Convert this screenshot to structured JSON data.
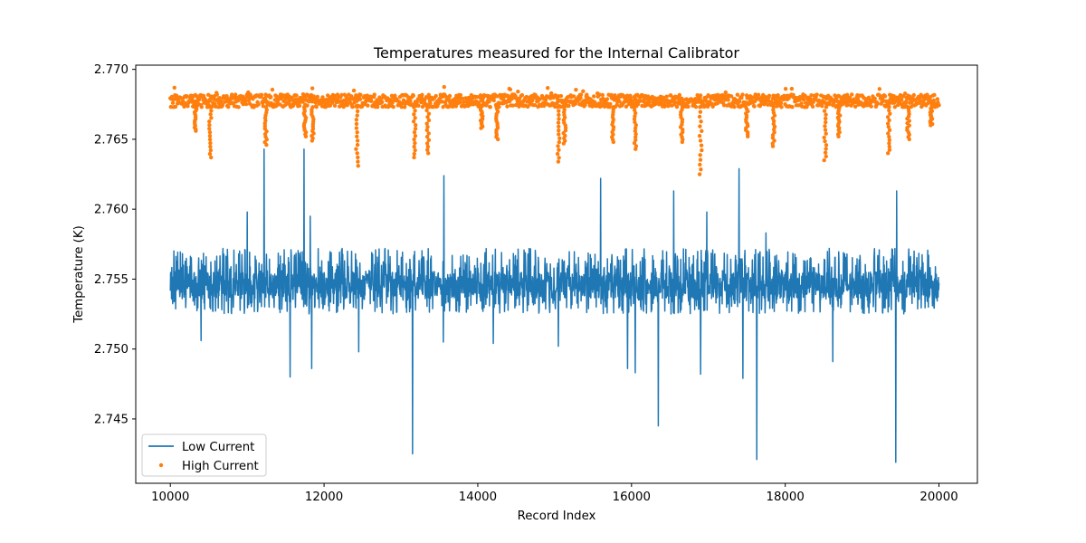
{
  "chart_data": {
    "type": "line",
    "title": "Temperatures measured for the Internal Calibrator",
    "xlabel": "Record Index",
    "ylabel": "Temperature (K)",
    "xlim": [
      9550,
      20500
    ],
    "ylim": [
      2.7404,
      2.7703
    ],
    "x_ticks": [
      10000,
      12000,
      14000,
      16000,
      18000,
      20000
    ],
    "x_tick_labels": [
      "10000",
      "12000",
      "14000",
      "16000",
      "18000",
      "20000"
    ],
    "y_ticks": [
      2.745,
      2.75,
      2.755,
      2.76,
      2.765,
      2.77
    ],
    "y_tick_labels": [
      "2.745",
      "2.750",
      "2.755",
      "2.760",
      "2.765",
      "2.770"
    ],
    "grid": false,
    "legend_position": "lower-left",
    "x_range": [
      10000,
      20000
    ],
    "series": [
      {
        "name": "Low Current",
        "style": "line",
        "color": "#1f77b4",
        "baseline": 2.7545,
        "band": [
          2.7536,
          2.7555
        ],
        "noise_band": [
          2.7525,
          2.7572
        ],
        "spikes": [
          {
            "x": 11000,
            "y": 2.7598
          },
          {
            "x": 11220,
            "y": 2.7643
          },
          {
            "x": 11560,
            "y": 2.748
          },
          {
            "x": 11740,
            "y": 2.7643
          },
          {
            "x": 11820,
            "y": 2.7595
          },
          {
            "x": 11840,
            "y": 2.7486
          },
          {
            "x": 13150,
            "y": 2.7425
          },
          {
            "x": 13560,
            "y": 2.7624
          },
          {
            "x": 15600,
            "y": 2.7622
          },
          {
            "x": 16350,
            "y": 2.7445
          },
          {
            "x": 16550,
            "y": 2.7613
          },
          {
            "x": 16900,
            "y": 2.7482
          },
          {
            "x": 16980,
            "y": 2.7598
          },
          {
            "x": 17400,
            "y": 2.7629
          },
          {
            "x": 17450,
            "y": 2.7479
          },
          {
            "x": 17630,
            "y": 2.7421
          },
          {
            "x": 17750,
            "y": 2.7583
          },
          {
            "x": 19440,
            "y": 2.7419
          },
          {
            "x": 19450,
            "y": 2.7613
          }
        ],
        "dips": [
          {
            "x": 10400,
            "y": 2.7506
          },
          {
            "x": 12450,
            "y": 2.7498
          },
          {
            "x": 13550,
            "y": 2.7505
          },
          {
            "x": 14200,
            "y": 2.7504
          },
          {
            "x": 15050,
            "y": 2.7502
          },
          {
            "x": 15950,
            "y": 2.7486
          },
          {
            "x": 16050,
            "y": 2.7483
          },
          {
            "x": 18620,
            "y": 2.7491
          }
        ]
      },
      {
        "name": "High Current",
        "style": "scatter",
        "color": "#ff7f0e",
        "baseline": 2.7678,
        "band": [
          2.7673,
          2.7682
        ],
        "max_value": 2.7688,
        "dips": [
          {
            "x": 10330,
            "y": 2.7656
          },
          {
            "x": 10520,
            "y": 2.7637
          },
          {
            "x": 11240,
            "y": 2.7646
          },
          {
            "x": 11750,
            "y": 2.7652
          },
          {
            "x": 11850,
            "y": 2.7649
          },
          {
            "x": 12430,
            "y": 2.7631
          },
          {
            "x": 13180,
            "y": 2.7637
          },
          {
            "x": 13350,
            "y": 2.764
          },
          {
            "x": 14050,
            "y": 2.7658
          },
          {
            "x": 14250,
            "y": 2.765
          },
          {
            "x": 15050,
            "y": 2.7634
          },
          {
            "x": 15130,
            "y": 2.7647
          },
          {
            "x": 15760,
            "y": 2.7648
          },
          {
            "x": 16050,
            "y": 2.7643
          },
          {
            "x": 16650,
            "y": 2.7648
          },
          {
            "x": 16900,
            "y": 2.7625
          },
          {
            "x": 17500,
            "y": 2.7652
          },
          {
            "x": 17850,
            "y": 2.7645
          },
          {
            "x": 18520,
            "y": 2.7635
          },
          {
            "x": 18700,
            "y": 2.7652
          },
          {
            "x": 19350,
            "y": 2.764
          },
          {
            "x": 19600,
            "y": 2.765
          },
          {
            "x": 19900,
            "y": 2.766
          }
        ]
      }
    ]
  }
}
